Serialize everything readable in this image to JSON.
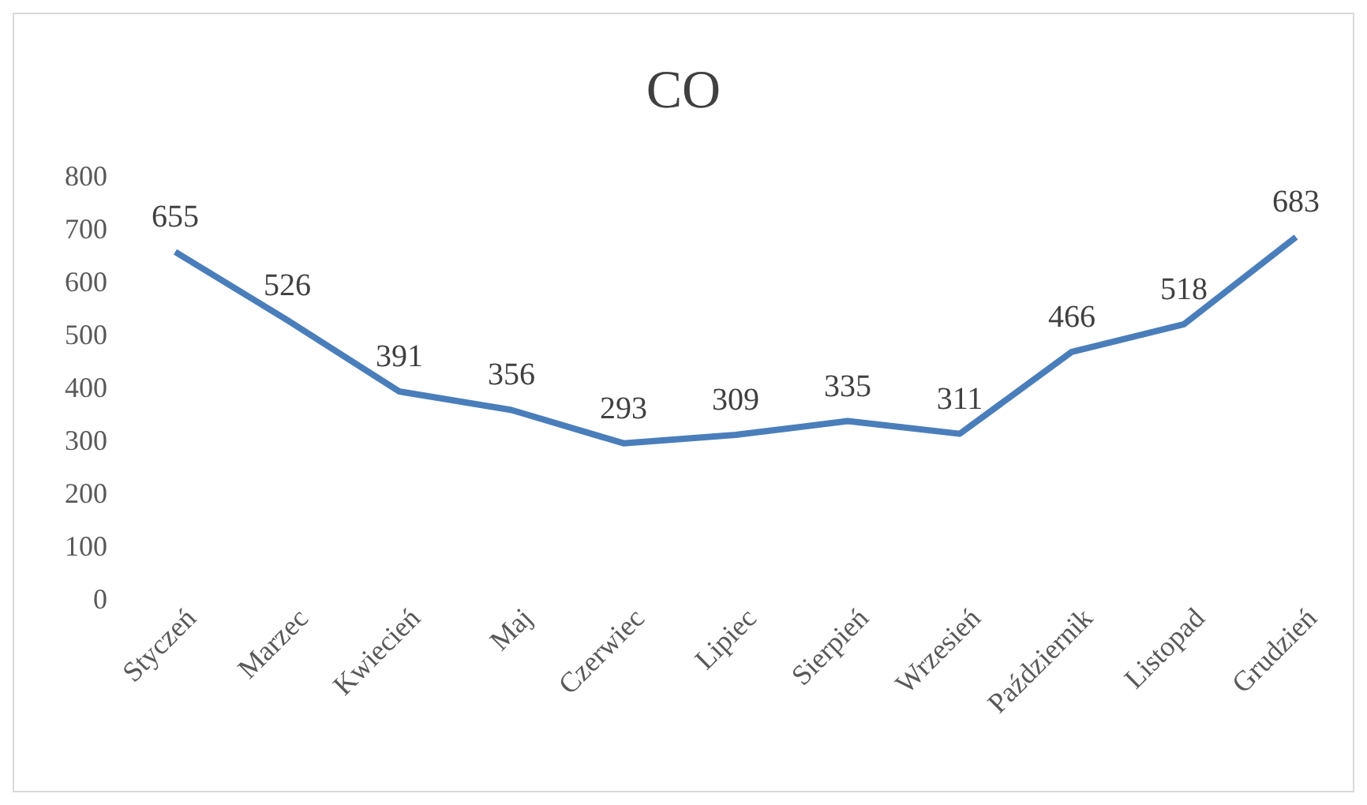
{
  "chart_data": {
    "type": "line",
    "title": "CO",
    "categories": [
      "Styczeń",
      "Marzec",
      "Kwiecień",
      "Maj",
      "Czerwiec",
      "Lipiec",
      "Sierpień",
      "Wrzesień",
      "Październik",
      "Listopad",
      "Grudzień"
    ],
    "series": [
      {
        "color": "#4a7ebb",
        "values": [
          655,
          526,
          391,
          356,
          293,
          309,
          335,
          311,
          466,
          518,
          683
        ]
      }
    ],
    "ylim": [
      0,
      800
    ],
    "yticks": [
      0,
      100,
      200,
      300,
      400,
      500,
      600,
      700,
      800
    ],
    "data_labels": true,
    "marker": "none"
  }
}
